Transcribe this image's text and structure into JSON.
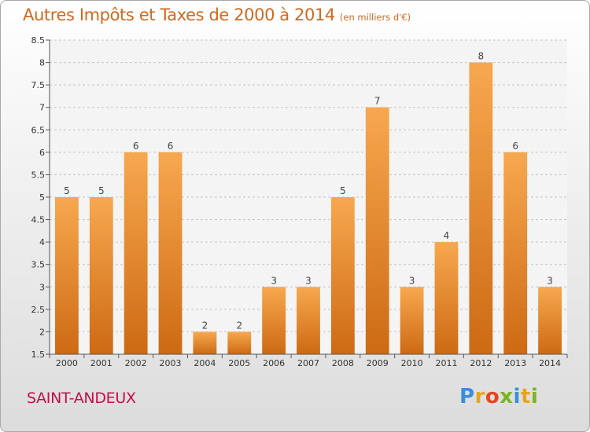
{
  "header": {
    "title": "Autres Impôts et Taxes de 2000 à 2014",
    "subtitle": "(en milliers d'€)"
  },
  "footer": {
    "commune": "SAINT-ANDEUX",
    "logo_letters": [
      "P",
      "r",
      "o",
      "x",
      "i",
      "t",
      "i"
    ],
    "logo_colors": [
      "#3a8fd6",
      "#e8a51b",
      "#e8431c",
      "#7ab51d",
      "#3a8fd6",
      "#e8a51b",
      "#7ab51d"
    ]
  },
  "colors": {
    "bar_light": "#f7a84f",
    "bar_dark": "#cd6a14",
    "title": "#d2691e",
    "commune": "#c0104a"
  },
  "chart_data": {
    "type": "bar",
    "title": "Autres Impôts et Taxes de 2000 à 2014",
    "subtitle": "(en milliers d'€)",
    "categories": [
      "2000",
      "2001",
      "2002",
      "2003",
      "2004",
      "2005",
      "2006",
      "2007",
      "2008",
      "2009",
      "2010",
      "2011",
      "2012",
      "2013",
      "2014"
    ],
    "values": [
      5,
      5,
      6,
      6,
      2,
      2,
      3,
      3,
      5,
      7,
      3,
      4,
      8,
      6,
      3
    ],
    "data_labels": [
      "5",
      "5",
      "6",
      "6",
      "2",
      "2",
      "3",
      "3",
      "5",
      "7",
      "3",
      "4",
      "8",
      "6",
      "3"
    ],
    "ylim": [
      1.5,
      8.5
    ],
    "yticks": [
      1.5,
      2,
      2.5,
      3,
      3.5,
      4,
      4.5,
      5,
      5.5,
      6,
      6.5,
      7,
      7.5,
      8,
      8.5
    ],
    "ytick_labels": [
      "1.5",
      "2",
      "2.5",
      "3",
      "3.5",
      "4",
      "4.5",
      "5",
      "5.5",
      "6",
      "6.5",
      "7",
      "7.5",
      "8",
      "8.5"
    ],
    "grid": "horizontal dashed",
    "legend": "none"
  }
}
